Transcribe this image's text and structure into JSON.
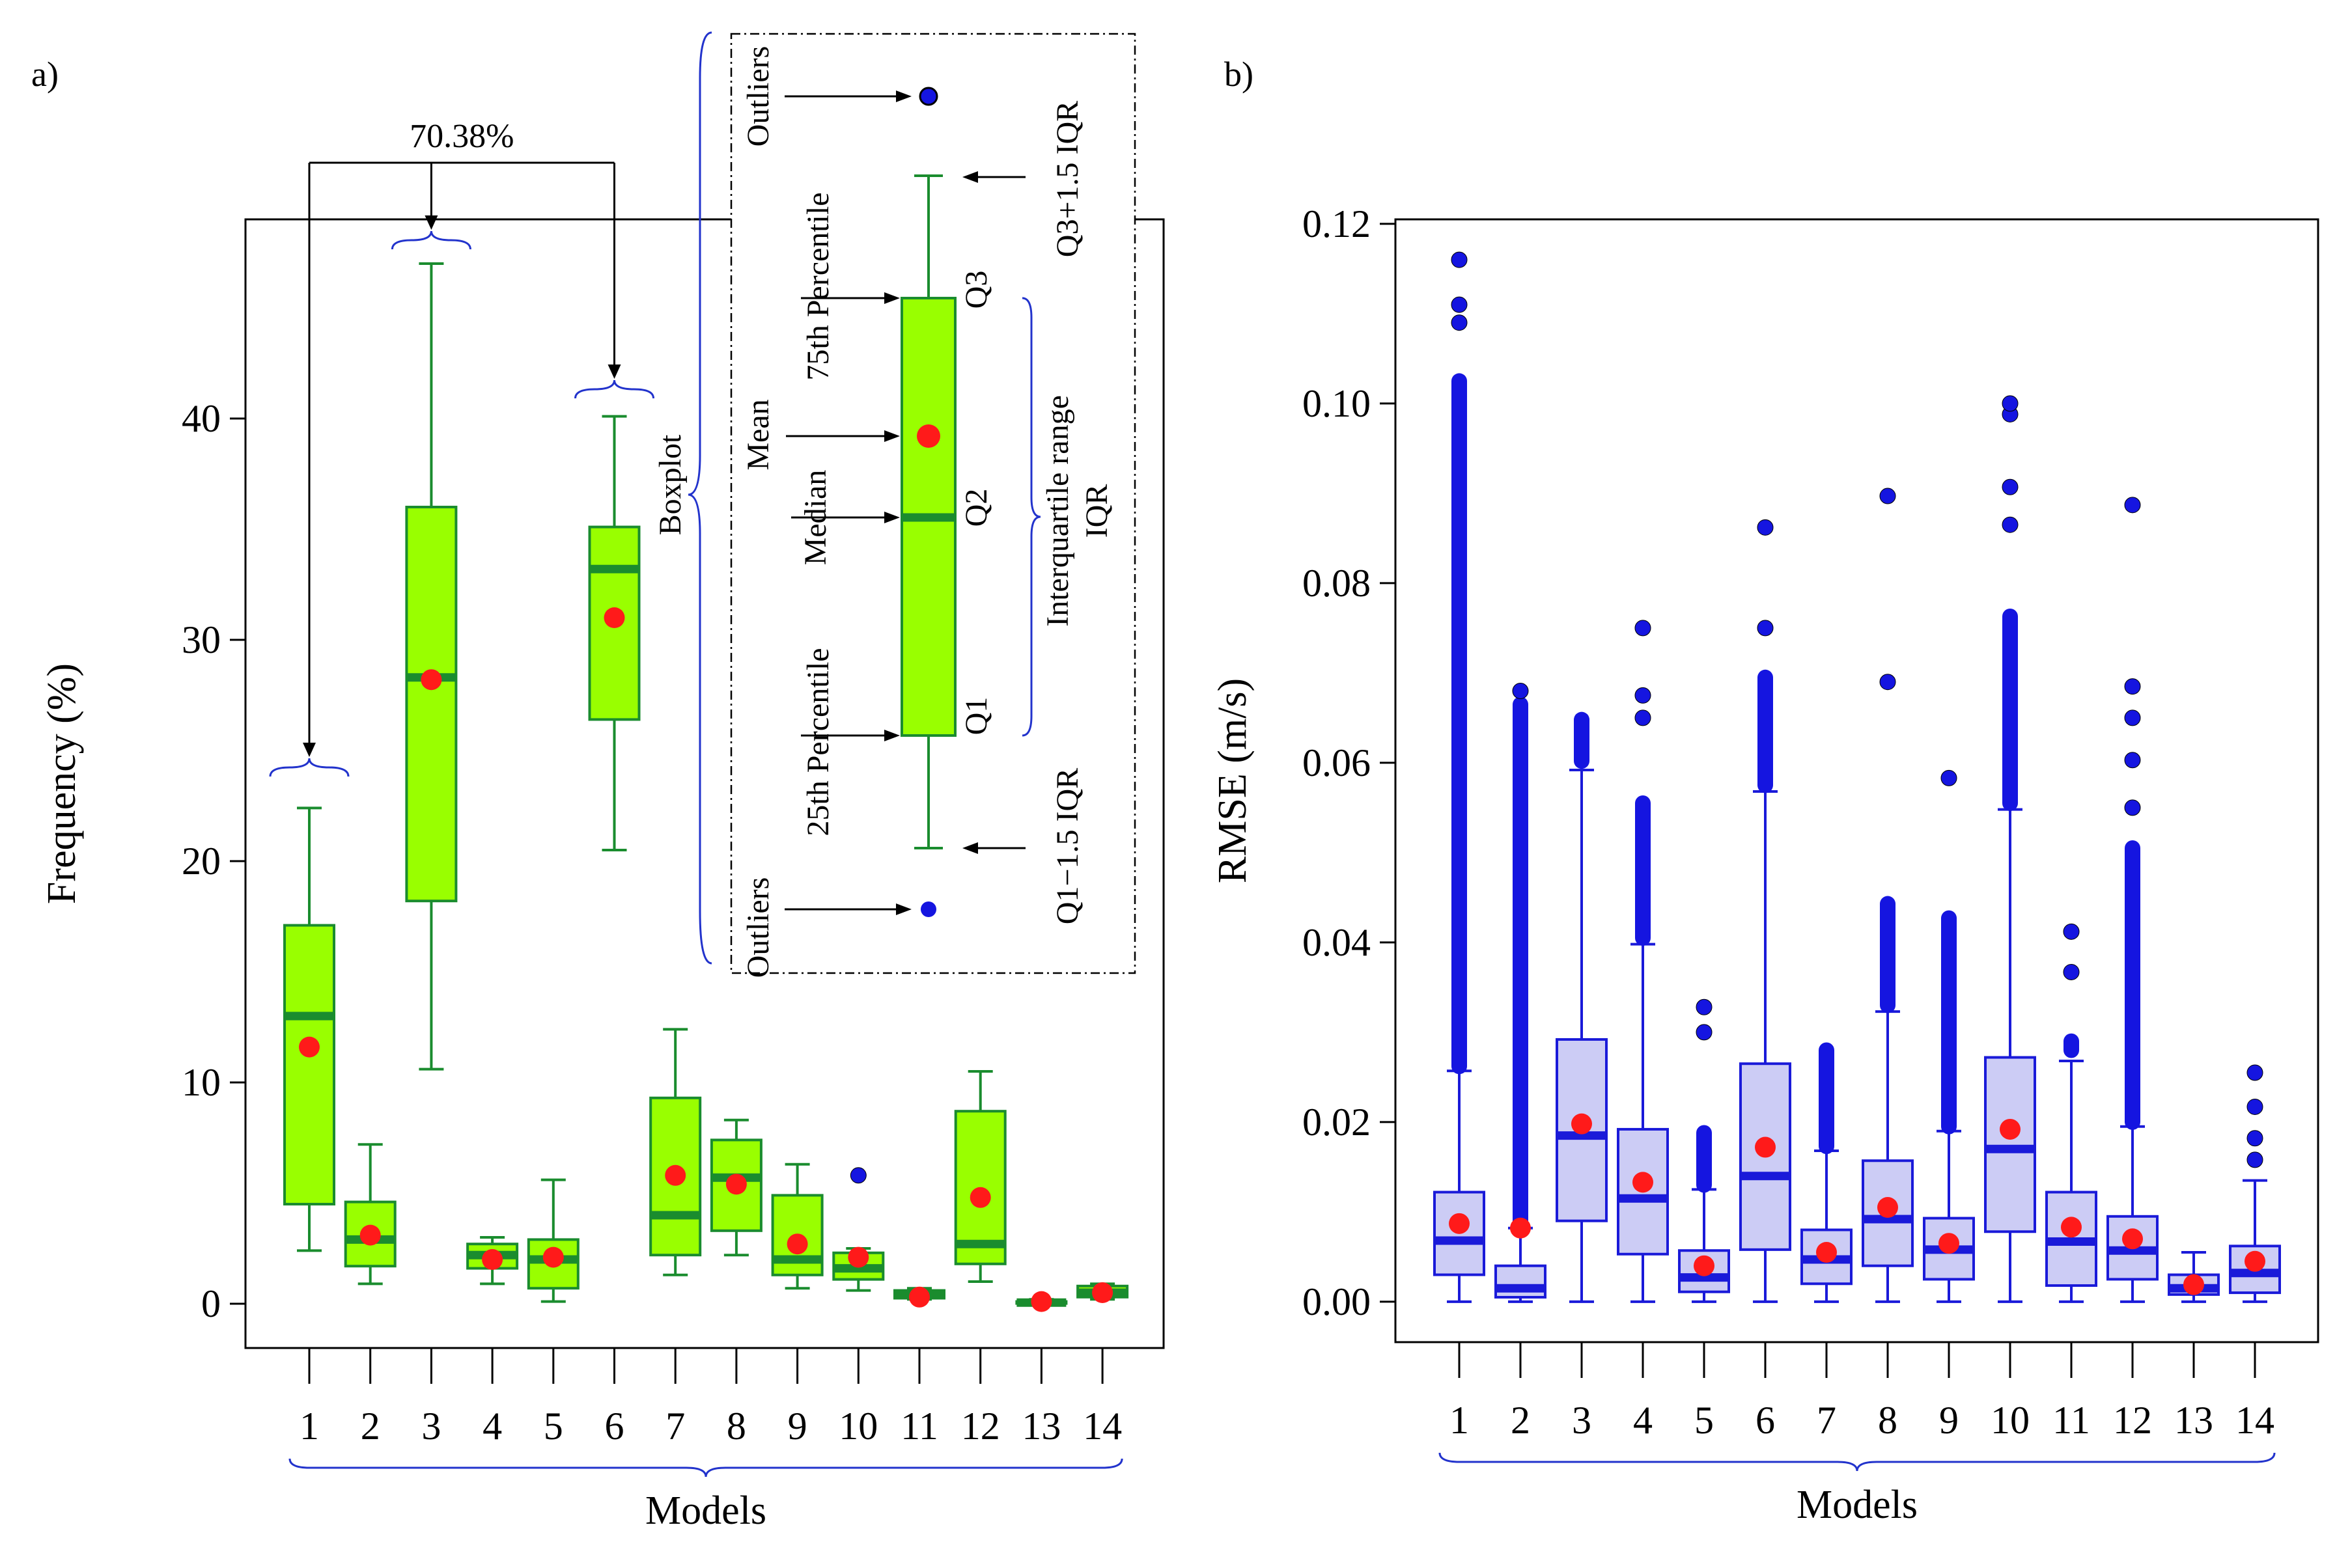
{
  "chart_data": [
    {
      "panel": "a)",
      "type": "boxplot",
      "xlabel": "Models",
      "ylabel": "Frequency (%)",
      "ylim": [
        -2,
        49
      ],
      "yticks": [
        0,
        10,
        20,
        30,
        40
      ],
      "categories": [
        "1",
        "2",
        "3",
        "4",
        "5",
        "6",
        "7",
        "8",
        "9",
        "10",
        "11",
        "12",
        "13",
        "14"
      ],
      "colors": {
        "box_fill": "#99ff00",
        "box_line": "#1a8c2e",
        "median": "#1a8c2e",
        "mean": "#ff1a1a",
        "outlier": "#1515e0",
        "brace": "#2233cc"
      },
      "boxes": [
        {
          "min": 2.4,
          "q1": 4.5,
          "median": 13.0,
          "q3": 17.1,
          "max": 22.4,
          "mean": 11.6,
          "outliers": []
        },
        {
          "min": 0.9,
          "q1": 1.7,
          "median": 2.9,
          "q3": 4.6,
          "max": 7.2,
          "mean": 3.1,
          "outliers": []
        },
        {
          "min": 10.6,
          "q1": 18.2,
          "median": 28.3,
          "q3": 36.0,
          "max": 47.0,
          "mean": 28.2,
          "outliers": []
        },
        {
          "min": 0.9,
          "q1": 1.6,
          "median": 2.2,
          "q3": 2.7,
          "max": 3.0,
          "mean": 2.0,
          "outliers": []
        },
        {
          "min": 0.1,
          "q1": 0.7,
          "median": 2.0,
          "q3": 2.9,
          "max": 5.6,
          "mean": 2.1,
          "outliers": []
        },
        {
          "min": 20.5,
          "q1": 26.4,
          "median": 33.2,
          "q3": 35.1,
          "max": 40.1,
          "mean": 31.0,
          "outliers": []
        },
        {
          "min": 1.3,
          "q1": 2.2,
          "median": 4.0,
          "q3": 9.3,
          "max": 12.4,
          "mean": 5.8,
          "outliers": []
        },
        {
          "min": 2.2,
          "q1": 3.3,
          "median": 5.7,
          "q3": 7.4,
          "max": 8.3,
          "mean": 5.4,
          "outliers": []
        },
        {
          "min": 0.7,
          "q1": 1.3,
          "median": 2.0,
          "q3": 4.9,
          "max": 6.3,
          "mean": 2.7,
          "outliers": []
        },
        {
          "min": 0.6,
          "q1": 1.1,
          "median": 1.6,
          "q3": 2.3,
          "max": 2.5,
          "mean": 2.1,
          "outliers": [
            5.8
          ]
        },
        {
          "min": 0.2,
          "q1": 0.25,
          "median": 0.4,
          "q3": 0.6,
          "max": 0.7,
          "mean": 0.3,
          "outliers": []
        },
        {
          "min": 1.0,
          "q1": 1.8,
          "median": 2.7,
          "q3": 8.7,
          "max": 10.5,
          "mean": 4.8,
          "outliers": []
        },
        {
          "min": 0.0,
          "q1": 0.02,
          "median": 0.05,
          "q3": 0.1,
          "max": 0.2,
          "mean": 0.1,
          "outliers": []
        },
        {
          "min": 0.2,
          "q1": 0.3,
          "median": 0.5,
          "q3": 0.8,
          "max": 0.9,
          "mean": 0.5,
          "outliers": []
        }
      ],
      "annotation": {
        "text": "70.38%",
        "models": [
          "1",
          "3",
          "6"
        ]
      },
      "legend": {
        "title": "Boxplot",
        "labels": {
          "outliers_top": "Outliers",
          "outliers_bottom": "Outliers",
          "upper_whisker": "Q3+1.5 IQR",
          "lower_whisker": "Q1−1.5 IQR",
          "p75": "75th Percentile",
          "p25": "25th Percentile",
          "mean": "Mean",
          "median": "Median",
          "q3": "Q3",
          "q2": "Q2",
          "q1": "Q1",
          "iqr_line1": "Interquartile range",
          "iqr_line2": "IQR"
        }
      }
    },
    {
      "panel": "b)",
      "type": "boxplot",
      "xlabel": "Models",
      "ylabel": "RMSE (m/s)",
      "ylim": [
        -0.0045,
        0.1205
      ],
      "yticks": [
        0.0,
        0.02,
        0.04,
        0.06,
        0.08,
        0.1,
        0.12
      ],
      "ytick_labels": [
        "0.00",
        "0.02",
        "0.04",
        "0.06",
        "0.08",
        "0.10",
        "0.12"
      ],
      "categories": [
        "1",
        "2",
        "3",
        "4",
        "5",
        "6",
        "7",
        "8",
        "9",
        "10",
        "11",
        "12",
        "13",
        "14"
      ],
      "colors": {
        "box_fill": "#ccccf5",
        "box_line": "#1a1ad9",
        "median": "#1a1ad9",
        "mean": "#ff1a1a",
        "outlier": "#1515e0",
        "brace": "#2233cc"
      },
      "boxes": [
        {
          "min": 0.0,
          "q1": 0.003,
          "median": 0.0068,
          "q3": 0.0122,
          "max": 0.0257,
          "mean": 0.0087,
          "outliers_range": [
            0.0262,
            0.1025
          ],
          "outliers": [
            0.109,
            0.111,
            0.116
          ]
        },
        {
          "min": 0.0,
          "q1": 0.0005,
          "median": 0.0015,
          "q3": 0.004,
          "max": 0.0082,
          "mean": 0.0082,
          "outliers_range": [
            0.0088,
            0.0665
          ],
          "outliers": [
            0.068
          ]
        },
        {
          "min": 0.0,
          "q1": 0.009,
          "median": 0.0185,
          "q3": 0.0292,
          "max": 0.0592,
          "mean": 0.0198,
          "outliers_range": [
            0.0602,
            0.0648
          ],
          "outliers": []
        },
        {
          "min": 0.0,
          "q1": 0.0053,
          "median": 0.0115,
          "q3": 0.0192,
          "max": 0.0398,
          "mean": 0.0133,
          "outliers_range": [
            0.0405,
            0.0555
          ],
          "outliers": [
            0.065,
            0.0675,
            0.075
          ]
        },
        {
          "min": 0.0,
          "q1": 0.0011,
          "median": 0.0027,
          "q3": 0.0057,
          "max": 0.0125,
          "mean": 0.004,
          "outliers_range": [
            0.013,
            0.0188
          ],
          "outliers": [
            0.03,
            0.0328
          ]
        },
        {
          "min": 0.0,
          "q1": 0.0058,
          "median": 0.014,
          "q3": 0.0265,
          "max": 0.0568,
          "mean": 0.0172,
          "outliers_range": [
            0.0575,
            0.0695
          ],
          "outliers": [
            0.075,
            0.0862
          ]
        },
        {
          "min": 0.0,
          "q1": 0.002,
          "median": 0.0047,
          "q3": 0.008,
          "max": 0.0168,
          "mean": 0.0055,
          "outliers_range": [
            0.0173,
            0.028
          ],
          "outliers": []
        },
        {
          "min": 0.0,
          "q1": 0.004,
          "median": 0.0092,
          "q3": 0.0157,
          "max": 0.0323,
          "mean": 0.0105,
          "outliers_range": [
            0.033,
            0.0443
          ],
          "outliers": [
            0.069,
            0.0897
          ]
        },
        {
          "min": 0.0,
          "q1": 0.0025,
          "median": 0.0058,
          "q3": 0.0093,
          "max": 0.019,
          "mean": 0.0065,
          "outliers_range": [
            0.0195,
            0.0427
          ],
          "outliers": [
            0.0583
          ]
        },
        {
          "min": 0.0,
          "q1": 0.0078,
          "median": 0.017,
          "q3": 0.0272,
          "max": 0.0548,
          "mean": 0.0192,
          "outliers_range": [
            0.0555,
            0.0763
          ],
          "outliers": [
            0.0865,
            0.0907,
            0.0988,
            0.1
          ]
        },
        {
          "min": 0.0,
          "q1": 0.0018,
          "median": 0.0067,
          "q3": 0.0122,
          "max": 0.0268,
          "mean": 0.0083,
          "outliers_range": [
            0.028,
            0.029
          ],
          "outliers": [
            0.0367,
            0.0412
          ]
        },
        {
          "min": 0.0,
          "q1": 0.0025,
          "median": 0.0057,
          "q3": 0.0095,
          "max": 0.0195,
          "mean": 0.007,
          "outliers_range": [
            0.02,
            0.0505
          ],
          "outliers": [
            0.055,
            0.0603,
            0.065,
            0.0685,
            0.0887
          ]
        },
        {
          "min": 0.0,
          "q1": 0.0008,
          "median": 0.0015,
          "q3": 0.003,
          "max": 0.0055,
          "mean": 0.0019,
          "outliers_range": [],
          "outliers": []
        },
        {
          "min": 0.0,
          "q1": 0.001,
          "median": 0.0032,
          "q3": 0.0062,
          "max": 0.0135,
          "mean": 0.0045,
          "outliers_range": [],
          "outliers": [
            0.0158,
            0.0182,
            0.0217,
            0.0255
          ]
        }
      ]
    }
  ]
}
